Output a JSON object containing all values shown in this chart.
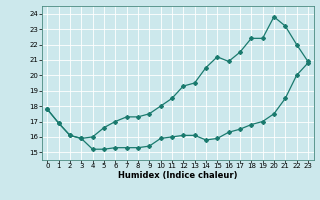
{
  "xlabel": "Humidex (Indice chaleur)",
  "bg_color": "#cce8ec",
  "grid_color": "#ffffff",
  "line_color": "#1a7a6e",
  "xlim": [
    -0.5,
    23.5
  ],
  "ylim": [
    14.5,
    24.5
  ],
  "xticks": [
    0,
    1,
    2,
    3,
    4,
    5,
    6,
    7,
    8,
    9,
    10,
    11,
    12,
    13,
    14,
    15,
    16,
    17,
    18,
    19,
    20,
    21,
    22,
    23
  ],
  "yticks": [
    15,
    16,
    17,
    18,
    19,
    20,
    21,
    22,
    23,
    24
  ],
  "line1_x": [
    0,
    1,
    2,
    3,
    4,
    5,
    6,
    7,
    8,
    9,
    10,
    11,
    12,
    13,
    14,
    15,
    16,
    17,
    18,
    19,
    20,
    21,
    22,
    23
  ],
  "line1_y": [
    17.8,
    16.9,
    16.1,
    15.9,
    15.2,
    15.2,
    15.3,
    15.3,
    15.3,
    15.4,
    15.9,
    16.0,
    16.1,
    16.1,
    15.8,
    15.9,
    16.3,
    16.5,
    16.8,
    17.0,
    17.5,
    18.5,
    20.0,
    20.8
  ],
  "line2_x": [
    0,
    1,
    2,
    3,
    4,
    5,
    6,
    7,
    8,
    9,
    10,
    11,
    12,
    13,
    14,
    15,
    16,
    17,
    18,
    19,
    20,
    21,
    22,
    23
  ],
  "line2_y": [
    17.8,
    16.9,
    16.1,
    15.9,
    16.0,
    16.6,
    17.0,
    17.3,
    17.3,
    17.5,
    18.0,
    18.5,
    19.3,
    19.5,
    20.5,
    21.2,
    20.9,
    21.5,
    22.4,
    22.4,
    23.8,
    23.2,
    22.0,
    20.9
  ],
  "xlabel_fontsize": 6.0,
  "tick_fontsize": 5.0,
  "marker_size": 2.0,
  "linewidth": 0.9
}
